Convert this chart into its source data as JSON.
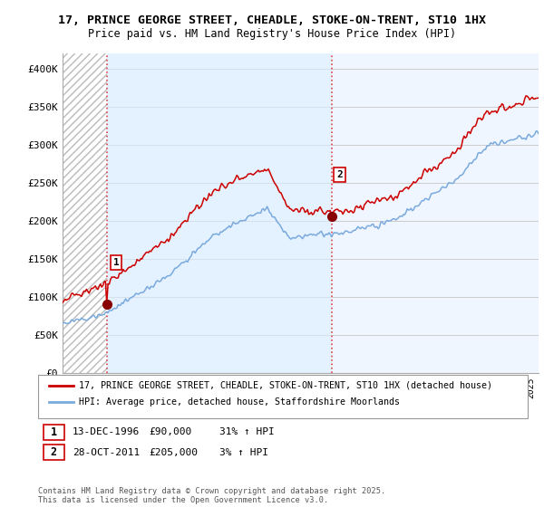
{
  "title1": "17, PRINCE GEORGE STREET, CHEADLE, STOKE-ON-TRENT, ST10 1HX",
  "title2": "Price paid vs. HM Land Registry's House Price Index (HPI)",
  "xlim_start": 1994.0,
  "xlim_end": 2025.5,
  "ylim": [
    0,
    420000
  ],
  "yticks": [
    0,
    50000,
    100000,
    150000,
    200000,
    250000,
    300000,
    350000,
    400000
  ],
  "ytick_labels": [
    "£0",
    "£50K",
    "£100K",
    "£150K",
    "£200K",
    "£250K",
    "£300K",
    "£350K",
    "£400K"
  ],
  "sale1_date": 1996.95,
  "sale1_price": 90000,
  "sale1_label": "13-DEC-1996",
  "sale1_price_label": "£90,000",
  "sale1_hpi_label": "31% ↑ HPI",
  "sale2_date": 2011.83,
  "sale2_price": 205000,
  "sale2_label": "28-OCT-2011",
  "sale2_price_label": "£205,000",
  "sale2_hpi_label": "3% ↑ HPI",
  "red_line_color": "#cc0000",
  "blue_line_color": "#7aaadd",
  "marker_color": "#880000",
  "dashed_line_color": "#dd4444",
  "legend_label_red": "17, PRINCE GEORGE STREET, CHEADLE, STOKE-ON-TRENT, ST10 1HX (detached house)",
  "legend_label_blue": "HPI: Average price, detached house, Staffordshire Moorlands",
  "footer": "Contains HM Land Registry data © Crown copyright and database right 2025.\nThis data is licensed under the Open Government Licence v3.0.",
  "grid_color": "#cccccc",
  "hatch_bg_color": "#dddddd",
  "between_sales_bg": "#ddeeff",
  "chart_bg": "#f0f6ff"
}
